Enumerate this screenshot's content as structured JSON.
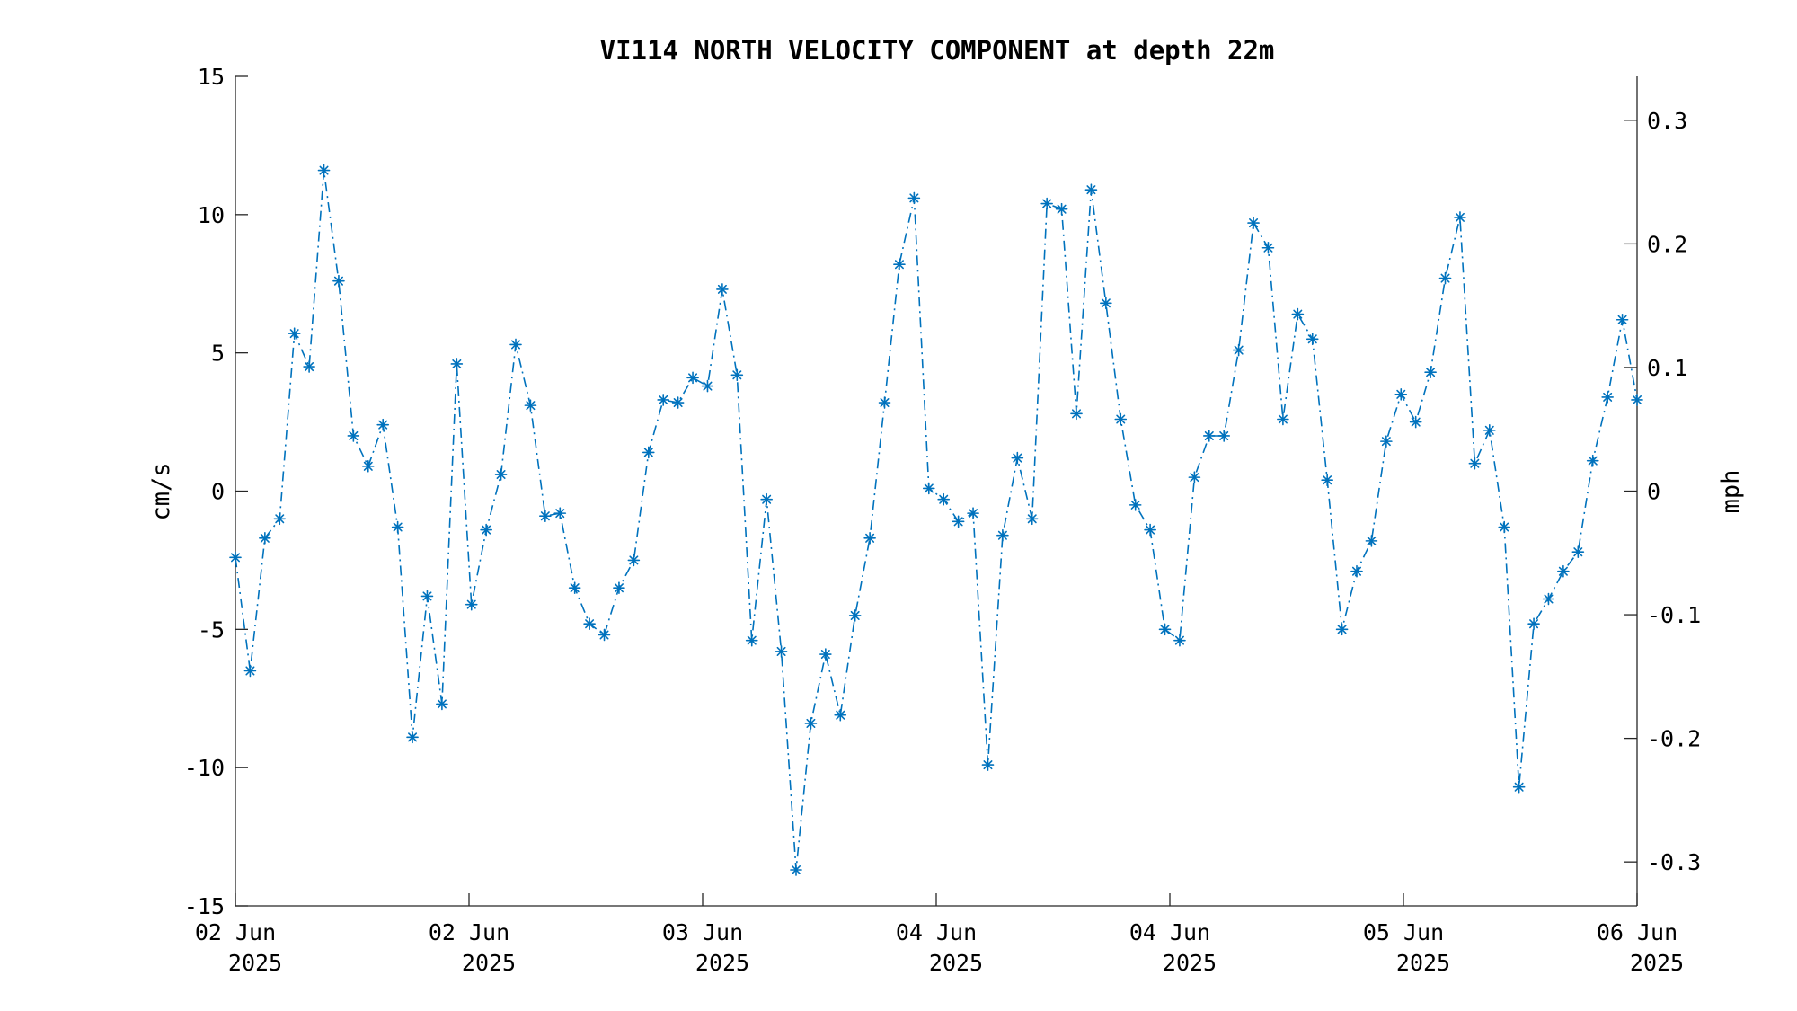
{
  "chart_data": {
    "type": "line",
    "title": "VI114 NORTH VELOCITY COMPONENT at depth 22m",
    "ylabel": "cm/s",
    "y2label": "mph",
    "ylim": [
      -15,
      15
    ],
    "y2lim": [
      -0.3355,
      0.3355
    ],
    "yticks": [
      -15,
      -10,
      -5,
      0,
      5,
      10,
      15
    ],
    "yticklabels": [
      "-15",
      "-10",
      "-5",
      "0",
      "5",
      "10",
      "15"
    ],
    "y2ticks": [
      -0.3,
      -0.2,
      -0.1,
      0,
      0.1,
      0.2,
      0.3
    ],
    "y2ticklabels": [
      "-0.3",
      "-0.2",
      "-0.1",
      "0",
      "0.1",
      "0.2",
      "0.3"
    ],
    "xlim_days": [
      0,
      3.75
    ],
    "xticks_days": [
      0,
      0.625,
      1.25,
      1.875,
      2.5,
      3.125,
      3.75
    ],
    "xticklabels": [
      [
        "02 Jun",
        "2025"
      ],
      [
        "02 Jun",
        "2025"
      ],
      [
        "03 Jun",
        "2025"
      ],
      [
        "04 Jun",
        "2025"
      ],
      [
        "04 Jun",
        "2025"
      ],
      [
        "05 Jun",
        "2025"
      ],
      [
        "06 Jun",
        "2025"
      ]
    ],
    "grid": false,
    "line_style": "dash-dot",
    "marker": "asterisk",
    "series_color": "#0072BD",
    "series": [
      {
        "values": [
          -2.4,
          -6.5,
          -1.7,
          -1.0,
          5.7,
          4.5,
          11.6,
          7.6,
          2.0,
          0.9,
          2.4,
          -1.3,
          -8.9,
          -3.8,
          -7.7,
          4.6,
          -4.1,
          -1.4,
          0.6,
          5.3,
          3.1,
          -0.9,
          -0.8,
          -3.5,
          -4.8,
          -5.2,
          -3.5,
          -2.5,
          1.4,
          3.3,
          3.2,
          4.1,
          3.8,
          7.3,
          4.2,
          -5.4,
          -0.3,
          -5.8,
          -13.7,
          -8.4,
          -5.9,
          -8.1,
          -4.5,
          -1.7,
          3.2,
          8.2,
          10.6,
          0.1,
          -0.3,
          -1.1,
          -0.8,
          -9.9,
          -1.6,
          1.2,
          -1.0,
          10.4,
          10.2,
          2.8,
          10.9,
          6.8,
          2.6,
          -0.5,
          -1.4,
          -5.0,
          -5.4,
          0.5,
          2.0,
          2.0,
          5.1,
          9.7,
          8.8,
          2.6,
          6.4,
          5.5,
          0.4,
          -5.0,
          -2.9,
          -1.8,
          1.8,
          3.5,
          2.5,
          4.3,
          7.7,
          9.9,
          1.0,
          2.2,
          -1.3,
          -10.7,
          -4.8,
          -3.9,
          -2.9,
          -2.2,
          1.1,
          3.4,
          6.2,
          3.3
        ]
      }
    ]
  }
}
